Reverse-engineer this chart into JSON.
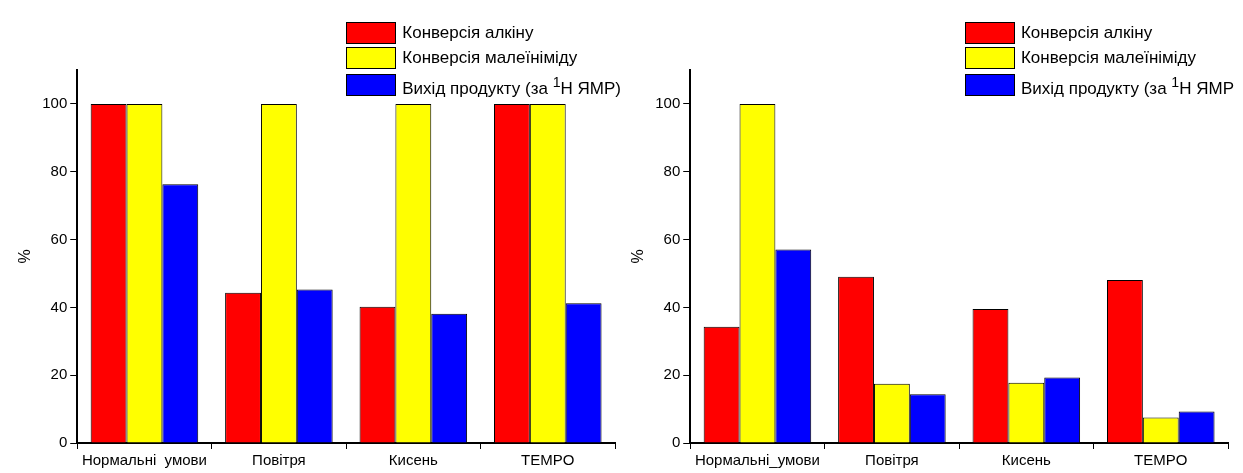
{
  "chart_data": [
    {
      "type": "bar",
      "ylabel": "%",
      "categories": [
        "Нормальні  умови",
        "Повітря",
        "Кисень",
        "TEMPO"
      ],
      "series": [
        {
          "name": "Конверсія алкіну",
          "color": "#ff0000",
          "values": [
            100,
            44.3,
            40.2,
            100
          ]
        },
        {
          "name": "Конверсія малеїніміду",
          "color": "#ffff00",
          "values": [
            100,
            100,
            100,
            100
          ]
        },
        {
          "name": "Вихід продукту (за $^{1}$H ЯМР)",
          "color": "#0000ff",
          "values": [
            76.3,
            45.3,
            38.1,
            41.2
          ]
        }
      ],
      "ylim": [
        0,
        110
      ],
      "yticks": [
        0,
        20,
        40,
        60,
        80,
        100
      ],
      "grid": false,
      "legend": "top right"
    },
    {
      "type": "bar",
      "ylabel": "%",
      "categories": [
        "Нормальні_умови",
        "Повітря",
        "Кисень",
        "TEMPO"
      ],
      "series": [
        {
          "name": "Конверсія алкіну",
          "color": "#ff0000",
          "values": [
            34.3,
            49.0,
            39.5,
            48.1
          ]
        },
        {
          "name": "Конверсія малеїніміду",
          "color": "#ffff00",
          "values": [
            100,
            17.5,
            17.8,
            7.5
          ]
        },
        {
          "name": "Вихід продукту (за $^{1}$H ЯМР",
          "color": "#0000ff",
          "values": [
            57.1,
            14.4,
            19.3,
            9.3
          ]
        }
      ],
      "ylim": [
        0,
        110
      ],
      "yticks": [
        0,
        20,
        40,
        60,
        80,
        100
      ],
      "grid": false,
      "legend": "top right"
    }
  ]
}
